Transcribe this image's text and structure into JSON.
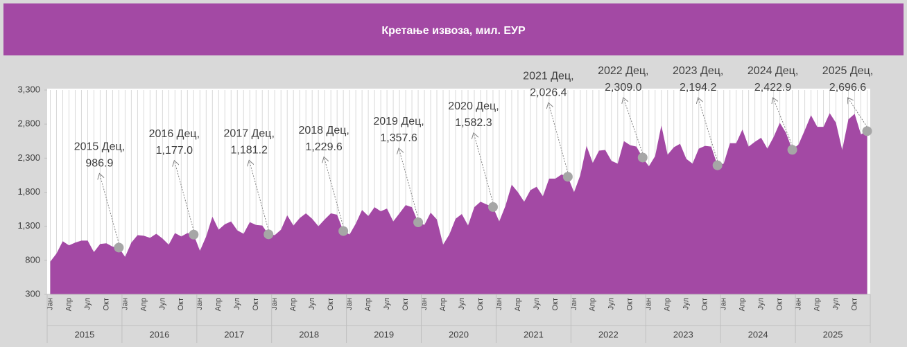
{
  "chart_data": {
    "type": "area",
    "title": "Кретање извоза, мил. ЕУР",
    "color": "#a349a4",
    "grid": true,
    "categories": [
      "Јан",
      null,
      null,
      "Апр",
      null,
      null,
      "Јул",
      null,
      null,
      "Окт",
      null,
      null,
      "Јан",
      null,
      null,
      "Апр",
      null,
      null,
      "Јул",
      null,
      null,
      "Окт",
      null,
      null,
      "Јан",
      null,
      null,
      "Апр",
      null,
      null,
      "Јул",
      null,
      null,
      "Окт",
      null,
      null,
      "Јан",
      null,
      null,
      "Апр",
      null,
      null,
      "Јул",
      null,
      null,
      "Окт",
      null,
      null,
      "Јан",
      null,
      null,
      "Апр",
      null,
      null,
      "Јул",
      null,
      null,
      "Окт",
      null,
      null,
      "Јан",
      null,
      null,
      "Апр",
      null,
      null,
      "Јул",
      null,
      null,
      "Окт",
      null,
      null,
      "Јан",
      null,
      null,
      "Апр",
      null,
      null,
      "Јул",
      null,
      null,
      "Окт",
      null,
      null,
      "Јан",
      null,
      null,
      "Апр",
      null,
      null,
      "Јул",
      null,
      null,
      "Окт",
      null,
      null,
      "Јан",
      null,
      null,
      "Апр",
      null,
      null,
      "Јул",
      null,
      null,
      "Окт",
      null,
      null,
      "Јан",
      null,
      null,
      "Апр",
      null,
      null,
      "Јул",
      null,
      null,
      "Окт",
      null,
      null,
      "Јан",
      null,
      null,
      "Апр",
      null,
      null,
      "Јул",
      null,
      null,
      "Окт",
      null,
      null
    ],
    "years": [
      "2015",
      "2016",
      "2017",
      "2018",
      "2019",
      "2020",
      "2021",
      "2022",
      "2023",
      "2024",
      "2025"
    ],
    "values": [
      780,
      900,
      1080,
      1020,
      1060,
      1090,
      1090,
      920,
      1040,
      1050,
      1000,
      986.9,
      850,
      1060,
      1170,
      1160,
      1130,
      1190,
      1120,
      1030,
      1200,
      1150,
      1200,
      1177.0,
      940,
      1150,
      1440,
      1250,
      1330,
      1370,
      1240,
      1190,
      1360,
      1320,
      1310,
      1181.2,
      1170,
      1250,
      1460,
      1310,
      1420,
      1490,
      1410,
      1300,
      1400,
      1490,
      1470,
      1229.6,
      1180,
      1340,
      1540,
      1450,
      1580,
      1520,
      1560,
      1370,
      1490,
      1610,
      1580,
      1357.6,
      1320,
      1500,
      1400,
      1030,
      1180,
      1410,
      1480,
      1310,
      1580,
      1660,
      1620,
      1582.3,
      1370,
      1600,
      1910,
      1800,
      1660,
      1830,
      1880,
      1740,
      2000,
      2000,
      2060,
      2026.4,
      1800,
      2050,
      2480,
      2230,
      2410,
      2420,
      2260,
      2220,
      2550,
      2490,
      2470,
      2309.0,
      2180,
      2330,
      2780,
      2350,
      2460,
      2510,
      2290,
      2220,
      2440,
      2480,
      2470,
      2194.2,
      2220,
      2520,
      2520,
      2720,
      2470,
      2540,
      2600,
      2440,
      2610,
      2820,
      2670,
      2422.9,
      2500,
      2710,
      2930,
      2760,
      2760,
      2960,
      2820,
      2420,
      2870,
      2950,
      2650,
      2696.6
    ],
    "annotation_titles": [
      null,
      null,
      null,
      null,
      null,
      null,
      null,
      null,
      null,
      null,
      null,
      "2015 Дец,",
      null,
      null,
      null,
      null,
      null,
      null,
      null,
      null,
      null,
      null,
      null,
      "2016 Дец,",
      null,
      null,
      null,
      null,
      null,
      null,
      null,
      null,
      null,
      null,
      null,
      "2017 Дец,",
      null,
      null,
      null,
      null,
      null,
      null,
      null,
      null,
      null,
      null,
      null,
      "2018 Дец,",
      null,
      null,
      null,
      null,
      null,
      null,
      null,
      null,
      null,
      null,
      null,
      "2019 Дец,",
      null,
      null,
      null,
      null,
      null,
      null,
      null,
      null,
      null,
      null,
      null,
      "2020 Дец,",
      null,
      null,
      null,
      null,
      null,
      null,
      null,
      null,
      null,
      null,
      null,
      "2021 Дец,",
      null,
      null,
      null,
      null,
      null,
      null,
      null,
      null,
      null,
      null,
      null,
      "2022 Дец,",
      null,
      null,
      null,
      null,
      null,
      null,
      null,
      null,
      null,
      null,
      null,
      "2023 Дец,",
      null,
      null,
      null,
      null,
      null,
      null,
      null,
      null,
      null,
      null,
      null,
      "2024 Дец,",
      null,
      null,
      null,
      null,
      null,
      null,
      null,
      null,
      null,
      null,
      null,
      "2025 Дец,"
    ],
    "value_labels": [
      null,
      null,
      null,
      null,
      null,
      null,
      null,
      null,
      null,
      null,
      null,
      "986.9",
      null,
      null,
      null,
      null,
      null,
      null,
      null,
      null,
      null,
      null,
      null,
      "1,177.0",
      null,
      null,
      null,
      null,
      null,
      null,
      null,
      null,
      null,
      null,
      null,
      "1,181.2",
      null,
      null,
      null,
      null,
      null,
      null,
      null,
      null,
      null,
      null,
      null,
      "1,229.6",
      null,
      null,
      null,
      null,
      null,
      null,
      null,
      null,
      null,
      null,
      null,
      "1,357.6",
      null,
      null,
      null,
      null,
      null,
      null,
      null,
      null,
      null,
      null,
      null,
      "1,582.3",
      null,
      null,
      null,
      null,
      null,
      null,
      null,
      null,
      null,
      null,
      null,
      "2,026.4",
      null,
      null,
      null,
      null,
      null,
      null,
      null,
      null,
      null,
      null,
      null,
      "2,309.0",
      null,
      null,
      null,
      null,
      null,
      null,
      null,
      null,
      null,
      null,
      null,
      "2,194.2",
      null,
      null,
      null,
      null,
      null,
      null,
      null,
      null,
      null,
      null,
      null,
      "2,422.9",
      null,
      null,
      null,
      null,
      null,
      null,
      null,
      null,
      null,
      null,
      null,
      "2,696.6"
    ],
    "ylim": [
      300,
      3300
    ],
    "yticks": [
      300,
      800,
      {
        "value": 1300,
        "label": "1,300"
      },
      {
        "value": 1800,
        "label": "1,800"
      },
      {
        "value": 2300,
        "label": "2,300"
      },
      {
        "value": 2800,
        "label": "2,800"
      },
      {
        "value": 3300,
        "label": "3,300"
      }
    ]
  }
}
